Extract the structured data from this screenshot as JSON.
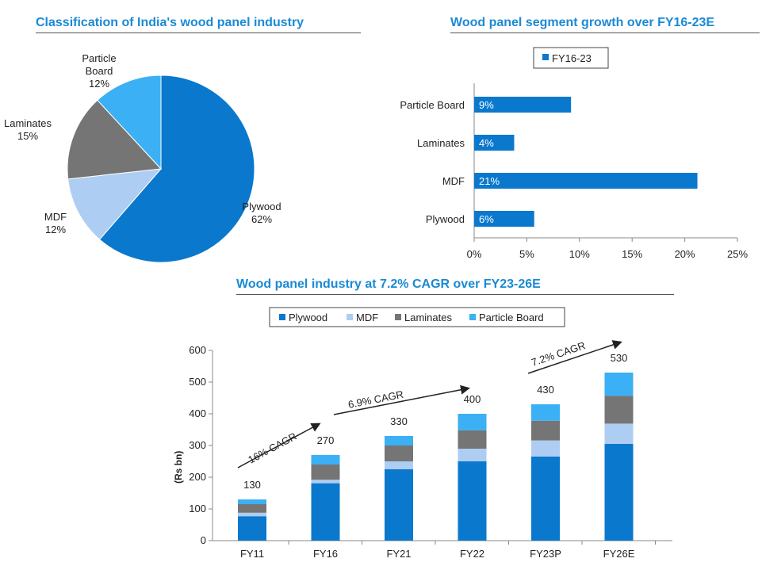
{
  "colors": {
    "plywood": "#0a78cc",
    "mdf": "#aecdf2",
    "laminates": "#757575",
    "particle": "#3bb0f4",
    "title": "#1a8ad4"
  },
  "chart_data": [
    {
      "type": "pie",
      "title": "Classification of India's wood panel industry",
      "slices": [
        {
          "name": "Plywood",
          "label": "Plywood",
          "pct_label": "62%",
          "value": 62
        },
        {
          "name": "MDF",
          "label": "MDF",
          "pct_label": "12%",
          "value": 12
        },
        {
          "name": "Laminates",
          "label": "Laminates",
          "pct_label": "15%",
          "value": 15
        },
        {
          "name": "Particle Board",
          "label": "Particle Board",
          "pct_label": "12%",
          "value": 12
        }
      ]
    },
    {
      "type": "bar",
      "orientation": "horizontal",
      "title": "Wood panel segment growth over FY16-23E",
      "legend": "FY16-23",
      "categories": [
        "Particle Board",
        "Laminates",
        "MDF",
        "Plywood"
      ],
      "values": [
        9.2,
        3.8,
        21.2,
        5.7
      ],
      "data_labels": [
        "9%",
        "4%",
        "21%",
        "6%"
      ],
      "xlim": [
        0,
        25
      ],
      "xticks": [
        "0%",
        "5%",
        "10%",
        "15%",
        "20%",
        "25%"
      ]
    },
    {
      "type": "bar",
      "stacked": true,
      "title": "Wood panel industry at 7.2% CAGR over FY23-26E",
      "ylabel": "(Rs bn)",
      "ylim": [
        0,
        600
      ],
      "yticks": [
        "0",
        "100",
        "200",
        "300",
        "400",
        "500",
        "600"
      ],
      "categories": [
        "FY11",
        "FY16",
        "FY21",
        "FY22",
        "FY23P",
        "FY26E"
      ],
      "series": [
        {
          "name": "Plywood",
          "values": [
            77,
            181,
            225,
            250,
            265,
            305
          ]
        },
        {
          "name": "MDF",
          "values": [
            11,
            11,
            25,
            40,
            51,
            64
          ]
        },
        {
          "name": "Laminates",
          "values": [
            27,
            48,
            50,
            58,
            62,
            88
          ]
        },
        {
          "name": "Particle Board",
          "values": [
            15,
            30,
            30,
            52,
            52,
            73
          ]
        }
      ],
      "totals": [
        "130",
        "270",
        "330",
        "400",
        "430",
        "530"
      ],
      "annotations": [
        "16% CAGR",
        "6.9% CAGR",
        "7.2% CAGR"
      ]
    }
  ]
}
